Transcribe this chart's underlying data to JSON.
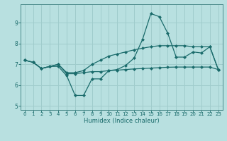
{
  "xlabel": "Humidex (Indice chaleur)",
  "bg_color": "#b8e0e0",
  "grid_color": "#a0cccc",
  "line_color": "#1a6b6b",
  "x": [
    0,
    1,
    2,
    3,
    4,
    5,
    6,
    7,
    8,
    9,
    10,
    11,
    12,
    13,
    14,
    15,
    16,
    17,
    18,
    19,
    20,
    21,
    22,
    23
  ],
  "line1": [
    7.2,
    7.1,
    6.8,
    6.9,
    6.9,
    6.45,
    5.5,
    5.5,
    6.3,
    6.3,
    6.7,
    6.75,
    6.95,
    7.3,
    8.2,
    9.45,
    9.3,
    8.5,
    7.35,
    7.35,
    7.6,
    7.55,
    7.85,
    6.75
  ],
  "line2": [
    7.2,
    7.1,
    6.8,
    6.9,
    7.0,
    6.6,
    6.6,
    6.7,
    7.0,
    7.2,
    7.4,
    7.5,
    7.6,
    7.7,
    7.78,
    7.85,
    7.9,
    7.9,
    7.9,
    7.9,
    7.85,
    7.85,
    7.85,
    6.75
  ],
  "line3": [
    7.2,
    7.1,
    6.8,
    6.9,
    7.0,
    6.55,
    6.55,
    6.6,
    6.65,
    6.65,
    6.7,
    6.72,
    6.75,
    6.78,
    6.8,
    6.82,
    6.84,
    6.86,
    6.87,
    6.87,
    6.87,
    6.87,
    6.87,
    6.75
  ],
  "xlim": [
    -0.5,
    23.5
  ],
  "ylim": [
    4.8,
    9.9
  ],
  "yticks": [
    5,
    6,
    7,
    8,
    9
  ],
  "xticks": [
    0,
    1,
    2,
    3,
    4,
    5,
    6,
    7,
    8,
    9,
    10,
    11,
    12,
    13,
    14,
    15,
    16,
    17,
    18,
    19,
    20,
    21,
    22,
    23
  ],
  "markersize": 2.5,
  "linewidth": 0.9,
  "tick_fontsize": 5.0,
  "xlabel_fontsize": 6.0
}
